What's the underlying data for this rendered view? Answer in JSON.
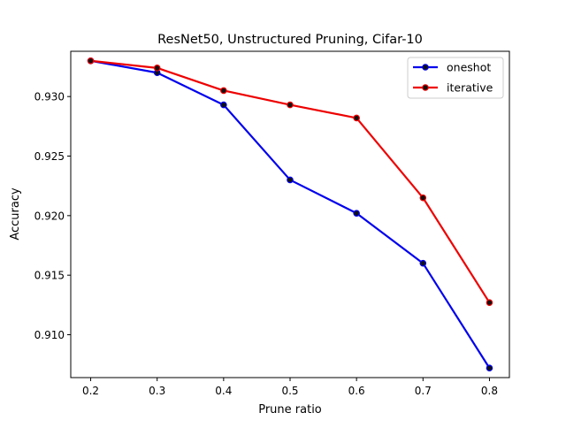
{
  "chart_data": {
    "type": "line",
    "title": "ResNet50, Unstructured Pruning, Cifar-10",
    "xlabel": "Prune ratio",
    "ylabel": "Accuracy",
    "x": [
      0.2,
      0.3,
      0.4,
      0.5,
      0.6,
      0.7,
      0.8
    ],
    "xlim": [
      0.17,
      0.83
    ],
    "ylim": [
      0.9064,
      0.9338
    ],
    "xticks": [
      "0.2",
      "0.3",
      "0.4",
      "0.5",
      "0.6",
      "0.7",
      "0.8"
    ],
    "yticks": [
      "0.910",
      "0.915",
      "0.920",
      "0.925",
      "0.930"
    ],
    "grid": false,
    "legend_position": "top-right",
    "series": [
      {
        "name": "oneshot",
        "color": "#0000ee",
        "values": [
          0.933,
          0.932,
          0.9293,
          0.923,
          0.9202,
          0.916,
          0.9072
        ]
      },
      {
        "name": "iterative",
        "color": "#ee0000",
        "values": [
          0.933,
          0.9324,
          0.9305,
          0.9293,
          0.9282,
          0.9215,
          0.9127
        ]
      }
    ],
    "marker_color": "#111111"
  }
}
